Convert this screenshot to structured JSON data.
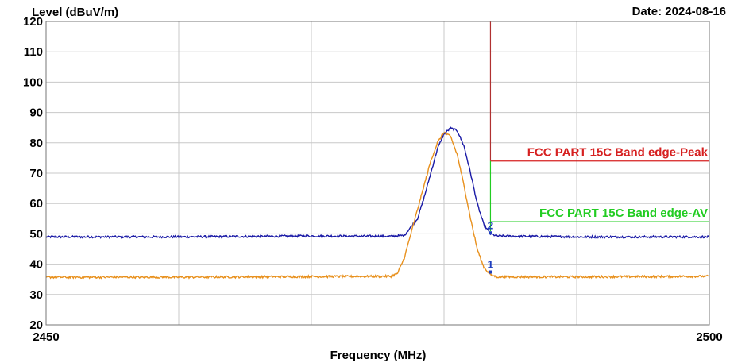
{
  "chart_data": {
    "type": "line",
    "ylabel": "Level (dBuV/m)",
    "xlabel": "Frequency (MHz)",
    "date_label": "Date: 2024-08-16",
    "xlim": [
      2450,
      2500
    ],
    "ylim": [
      20,
      120
    ],
    "x_ticks": [
      "2450",
      "2500"
    ],
    "y_ticks": [
      20,
      30,
      40,
      50,
      60,
      70,
      80,
      90,
      100,
      110,
      120
    ],
    "grid": true,
    "series": [
      {
        "key": "peak_trace",
        "color": "#1a1aa6",
        "points": [
          [
            2450,
            49
          ],
          [
            2460,
            49
          ],
          [
            2470,
            49.3
          ],
          [
            2476,
            49.2
          ],
          [
            2477,
            49.5
          ],
          [
            2478,
            55
          ],
          [
            2478.5,
            62
          ],
          [
            2479,
            70
          ],
          [
            2479.5,
            78
          ],
          [
            2480,
            83
          ],
          [
            2480.5,
            84.8
          ],
          [
            2481,
            84
          ],
          [
            2481.5,
            79
          ],
          [
            2482,
            70
          ],
          [
            2482.5,
            60
          ],
          [
            2483,
            53
          ],
          [
            2483.5,
            50
          ],
          [
            2484,
            49.3
          ],
          [
            2490,
            49
          ],
          [
            2500,
            49
          ]
        ]
      },
      {
        "key": "average_trace",
        "color": "#e8901c",
        "points": [
          [
            2450,
            35.7
          ],
          [
            2460,
            35.7
          ],
          [
            2470,
            35.9
          ],
          [
            2476,
            36
          ],
          [
            2476.5,
            37
          ],
          [
            2477,
            42
          ],
          [
            2477.5,
            50
          ],
          [
            2478,
            58
          ],
          [
            2478.5,
            66
          ],
          [
            2479,
            74
          ],
          [
            2479.5,
            80
          ],
          [
            2480,
            83.5
          ],
          [
            2480.5,
            82
          ],
          [
            2481,
            76
          ],
          [
            2481.5,
            66
          ],
          [
            2482,
            55
          ],
          [
            2482.5,
            45
          ],
          [
            2483,
            39
          ],
          [
            2483.5,
            36.5
          ],
          [
            2484,
            35.8
          ],
          [
            2490,
            35.8
          ],
          [
            2500,
            36
          ]
        ]
      }
    ],
    "limit_lines": [
      {
        "label": "FCC PART 15C Band edge-Peak",
        "value": 74,
        "x_start": 2483.5,
        "color": "#d62020",
        "vertical_color": "#b03030"
      },
      {
        "label": "FCC PART 15C Band edge-AV",
        "value": 54,
        "x_start": 2483.5,
        "color": "#22cc22"
      }
    ],
    "markers": [
      {
        "label": "1",
        "x": 2483.5,
        "y": 37.4
      },
      {
        "label": "2",
        "x": 2483.5,
        "y": 50.3
      }
    ]
  }
}
